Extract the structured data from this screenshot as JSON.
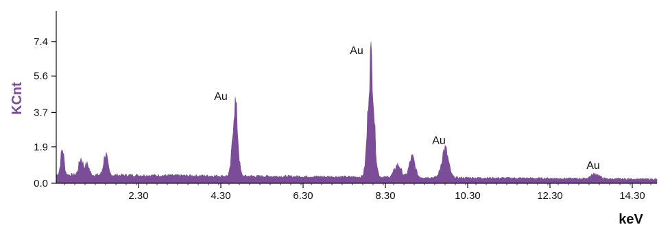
{
  "chart_data": {
    "type": "area",
    "title": "",
    "xlabel": "keV",
    "ylabel": "KCnt",
    "xlim": [
      0.3,
      14.9
    ],
    "ylim": [
      0,
      9
    ],
    "x_ticks": [
      2.3,
      4.3,
      6.3,
      8.3,
      10.3,
      12.3,
      14.3
    ],
    "x_tick_labels": [
      "2.30",
      "4.30",
      "6.30",
      "8.30",
      "10.30",
      "12.30",
      "14.30"
    ],
    "y_ticks": [
      0.0,
      1.9,
      3.7,
      5.6,
      7.4
    ],
    "y_tick_labels": [
      "0.0",
      "1.9",
      "3.7",
      "5.6",
      "7.4"
    ],
    "grid": false,
    "legend": "none",
    "series_color": "#7b4c97",
    "baseline": 0.45,
    "peaks": [
      {
        "x": 0.45,
        "y": 1.35,
        "width": 0.04
      },
      {
        "x": 0.9,
        "y": 0.85,
        "width": 0.05
      },
      {
        "x": 1.05,
        "y": 0.55,
        "width": 0.05
      },
      {
        "x": 1.5,
        "y": 1.1,
        "width": 0.05
      },
      {
        "x": 4.65,
        "y": 3.8,
        "width": 0.06
      },
      {
        "x": 7.95,
        "y": 6.2,
        "width": 0.07
      },
      {
        "x": 8.6,
        "y": 0.65,
        "width": 0.08
      },
      {
        "x": 8.95,
        "y": 1.05,
        "width": 0.07
      },
      {
        "x": 9.75,
        "y": 1.5,
        "width": 0.08
      },
      {
        "x": 13.4,
        "y": 0.25,
        "width": 0.1
      }
    ],
    "annotations": [
      {
        "text": "Au",
        "x": 4.3,
        "y": 4.35
      },
      {
        "text": "Au",
        "x": 7.6,
        "y": 6.75
      },
      {
        "text": "Au",
        "x": 9.6,
        "y": 2.05
      },
      {
        "text": "Au",
        "x": 13.35,
        "y": 0.75
      }
    ]
  }
}
